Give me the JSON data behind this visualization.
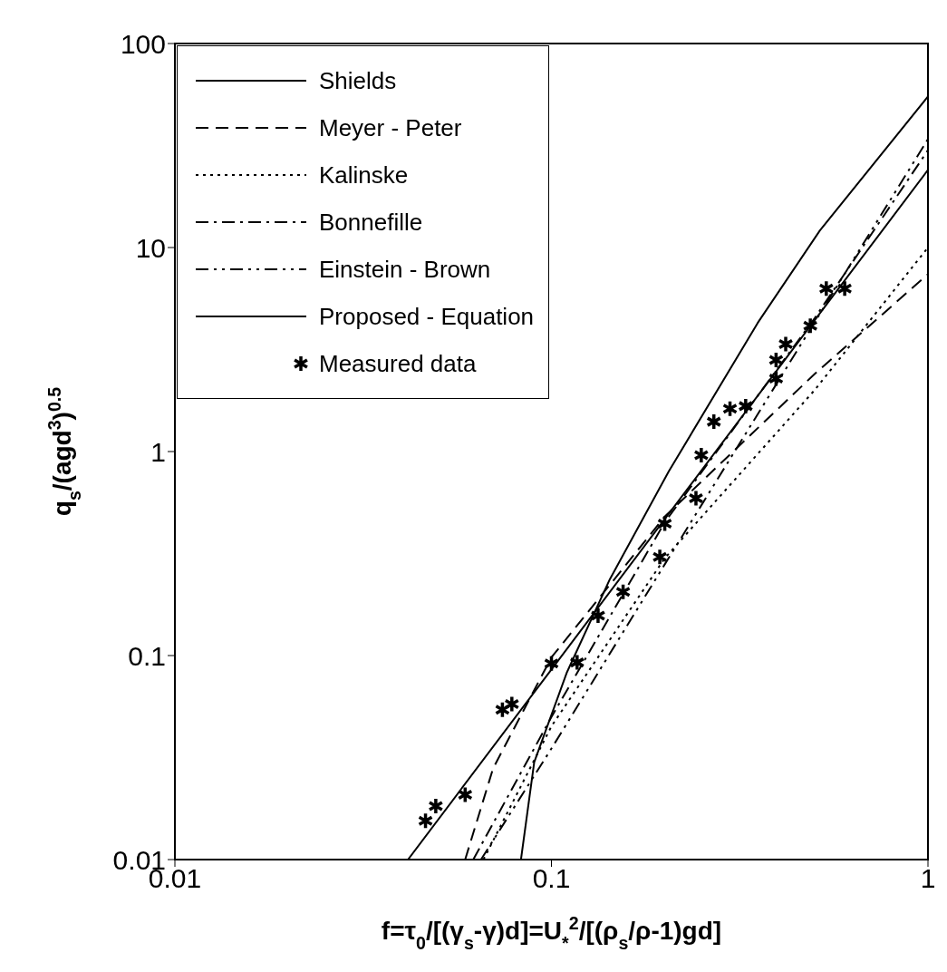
{
  "chart_data": {
    "type": "line",
    "xlabel": "f=τ$_{0}$/[(γ$_{s}$-γ)d]=U$_{*}$$^{2}$/[(ρ$_{s}$/ρ-1)gd]",
    "ylabel": "q$_{s}$/(agd$^{3}$)$^{0.5}$",
    "log": "xy",
    "xlim": [
      0.01,
      1
    ],
    "xticks": [
      0.01,
      0.1,
      1
    ],
    "ylim": [
      0.01,
      100
    ],
    "yticks": [
      0.01,
      0.1,
      1,
      10,
      100
    ],
    "legend": "top left",
    "series": [
      {
        "name": "Shields",
        "color": "#000000",
        "line_style": "solid",
        "marker": "none",
        "x": [
          0.083,
          0.09,
          0.11,
          0.143,
          0.205,
          0.353,
          0.516,
          1
        ],
        "values": [
          0.01,
          0.03,
          0.083,
          0.237,
          0.8,
          4.27,
          12.1,
          55
        ]
      },
      {
        "name": "Meyer - Peter",
        "color": "#000000",
        "line_style": "dashed",
        "marker": "none",
        "x": [
          0.059,
          0.07,
          0.1,
          0.2,
          0.5,
          1
        ],
        "values": [
          0.01,
          0.028,
          0.098,
          0.48,
          2.4,
          7.4
        ]
      },
      {
        "name": "Kalinske",
        "color": "#000000",
        "line_style": "dotted",
        "marker": "none",
        "x": [
          0.066,
          0.1,
          0.2,
          0.5,
          1
        ],
        "values": [
          0.01,
          0.045,
          0.3,
          2,
          10
        ]
      },
      {
        "name": "Bonnefille",
        "color": "#000000",
        "line_style": "dashdot",
        "marker": "none",
        "x": [
          0.062,
          0.1,
          0.2,
          0.5,
          1
        ],
        "values": [
          0.01,
          0.05,
          0.45,
          4.5,
          30
        ]
      },
      {
        "name": "Einstein - Brown",
        "color": "#000000",
        "line_style": "dashdotdot",
        "marker": "none",
        "x": [
          0.065,
          0.1,
          0.2,
          0.5,
          1
        ],
        "values": [
          0.01,
          0.035,
          0.28,
          4.3,
          34
        ]
      },
      {
        "name": "Proposed - Equation",
        "color": "#000000",
        "line_style": "solid",
        "marker": "none",
        "x": [
          0.0416,
          0.1,
          1
        ],
        "values": [
          0.01,
          0.0855,
          24
        ]
      },
      {
        "name": "Measured data",
        "type": "scatter",
        "color": "#000000",
        "marker": "cross",
        "x": [
          0.0463,
          0.0493,
          0.059,
          0.0741,
          0.0785,
          0.1,
          0.117,
          0.133,
          0.155,
          0.194,
          0.2,
          0.242,
          0.25,
          0.27,
          0.298,
          0.328,
          0.395,
          0.395,
          0.419,
          0.487,
          0.537,
          0.601
        ],
        "values": [
          0.0155,
          0.0183,
          0.0208,
          0.0543,
          0.0578,
          0.0915,
          0.0925,
          0.157,
          0.205,
          0.304,
          0.443,
          0.59,
          0.96,
          1.4,
          1.62,
          1.67,
          2.28,
          2.81,
          3.36,
          4.14,
          6.29,
          6.29
        ]
      }
    ]
  }
}
